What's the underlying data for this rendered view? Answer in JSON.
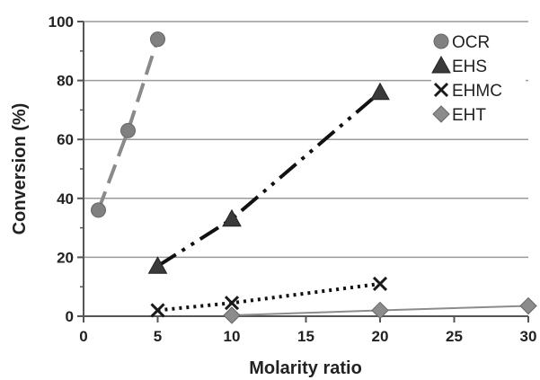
{
  "chart_data": {
    "type": "scatter",
    "title": "",
    "xlabel": "Molarity ratio",
    "ylabel": "Conversion (%)",
    "xlim": [
      0,
      30
    ],
    "ylim": [
      0,
      100
    ],
    "xticks": [
      0,
      5,
      10,
      15,
      20,
      25,
      30
    ],
    "yticks": [
      0,
      20,
      40,
      60,
      80,
      100
    ],
    "grid": "horizontal",
    "legend": "top-right",
    "series": [
      {
        "name": "OCR",
        "marker": "circle",
        "line": "long-dash",
        "color": "#808080",
        "x": [
          1,
          3,
          5
        ],
        "y": [
          36,
          63,
          94
        ]
      },
      {
        "name": "EHS",
        "marker": "triangle",
        "line": "dash-dot-dot",
        "color": "#3a3a3a",
        "x": [
          5,
          10,
          20
        ],
        "y": [
          17,
          33,
          76
        ]
      },
      {
        "name": "EHMC",
        "marker": "x",
        "line": "dotted",
        "color": "#1a1a1a",
        "x": [
          5,
          10,
          20
        ],
        "y": [
          2,
          4.5,
          11
        ]
      },
      {
        "name": "EHT",
        "marker": "diamond",
        "line": "solid",
        "color": "#8c8c8c",
        "x": [
          10,
          20,
          30
        ],
        "y": [
          0.3,
          2,
          3.5
        ]
      }
    ]
  }
}
